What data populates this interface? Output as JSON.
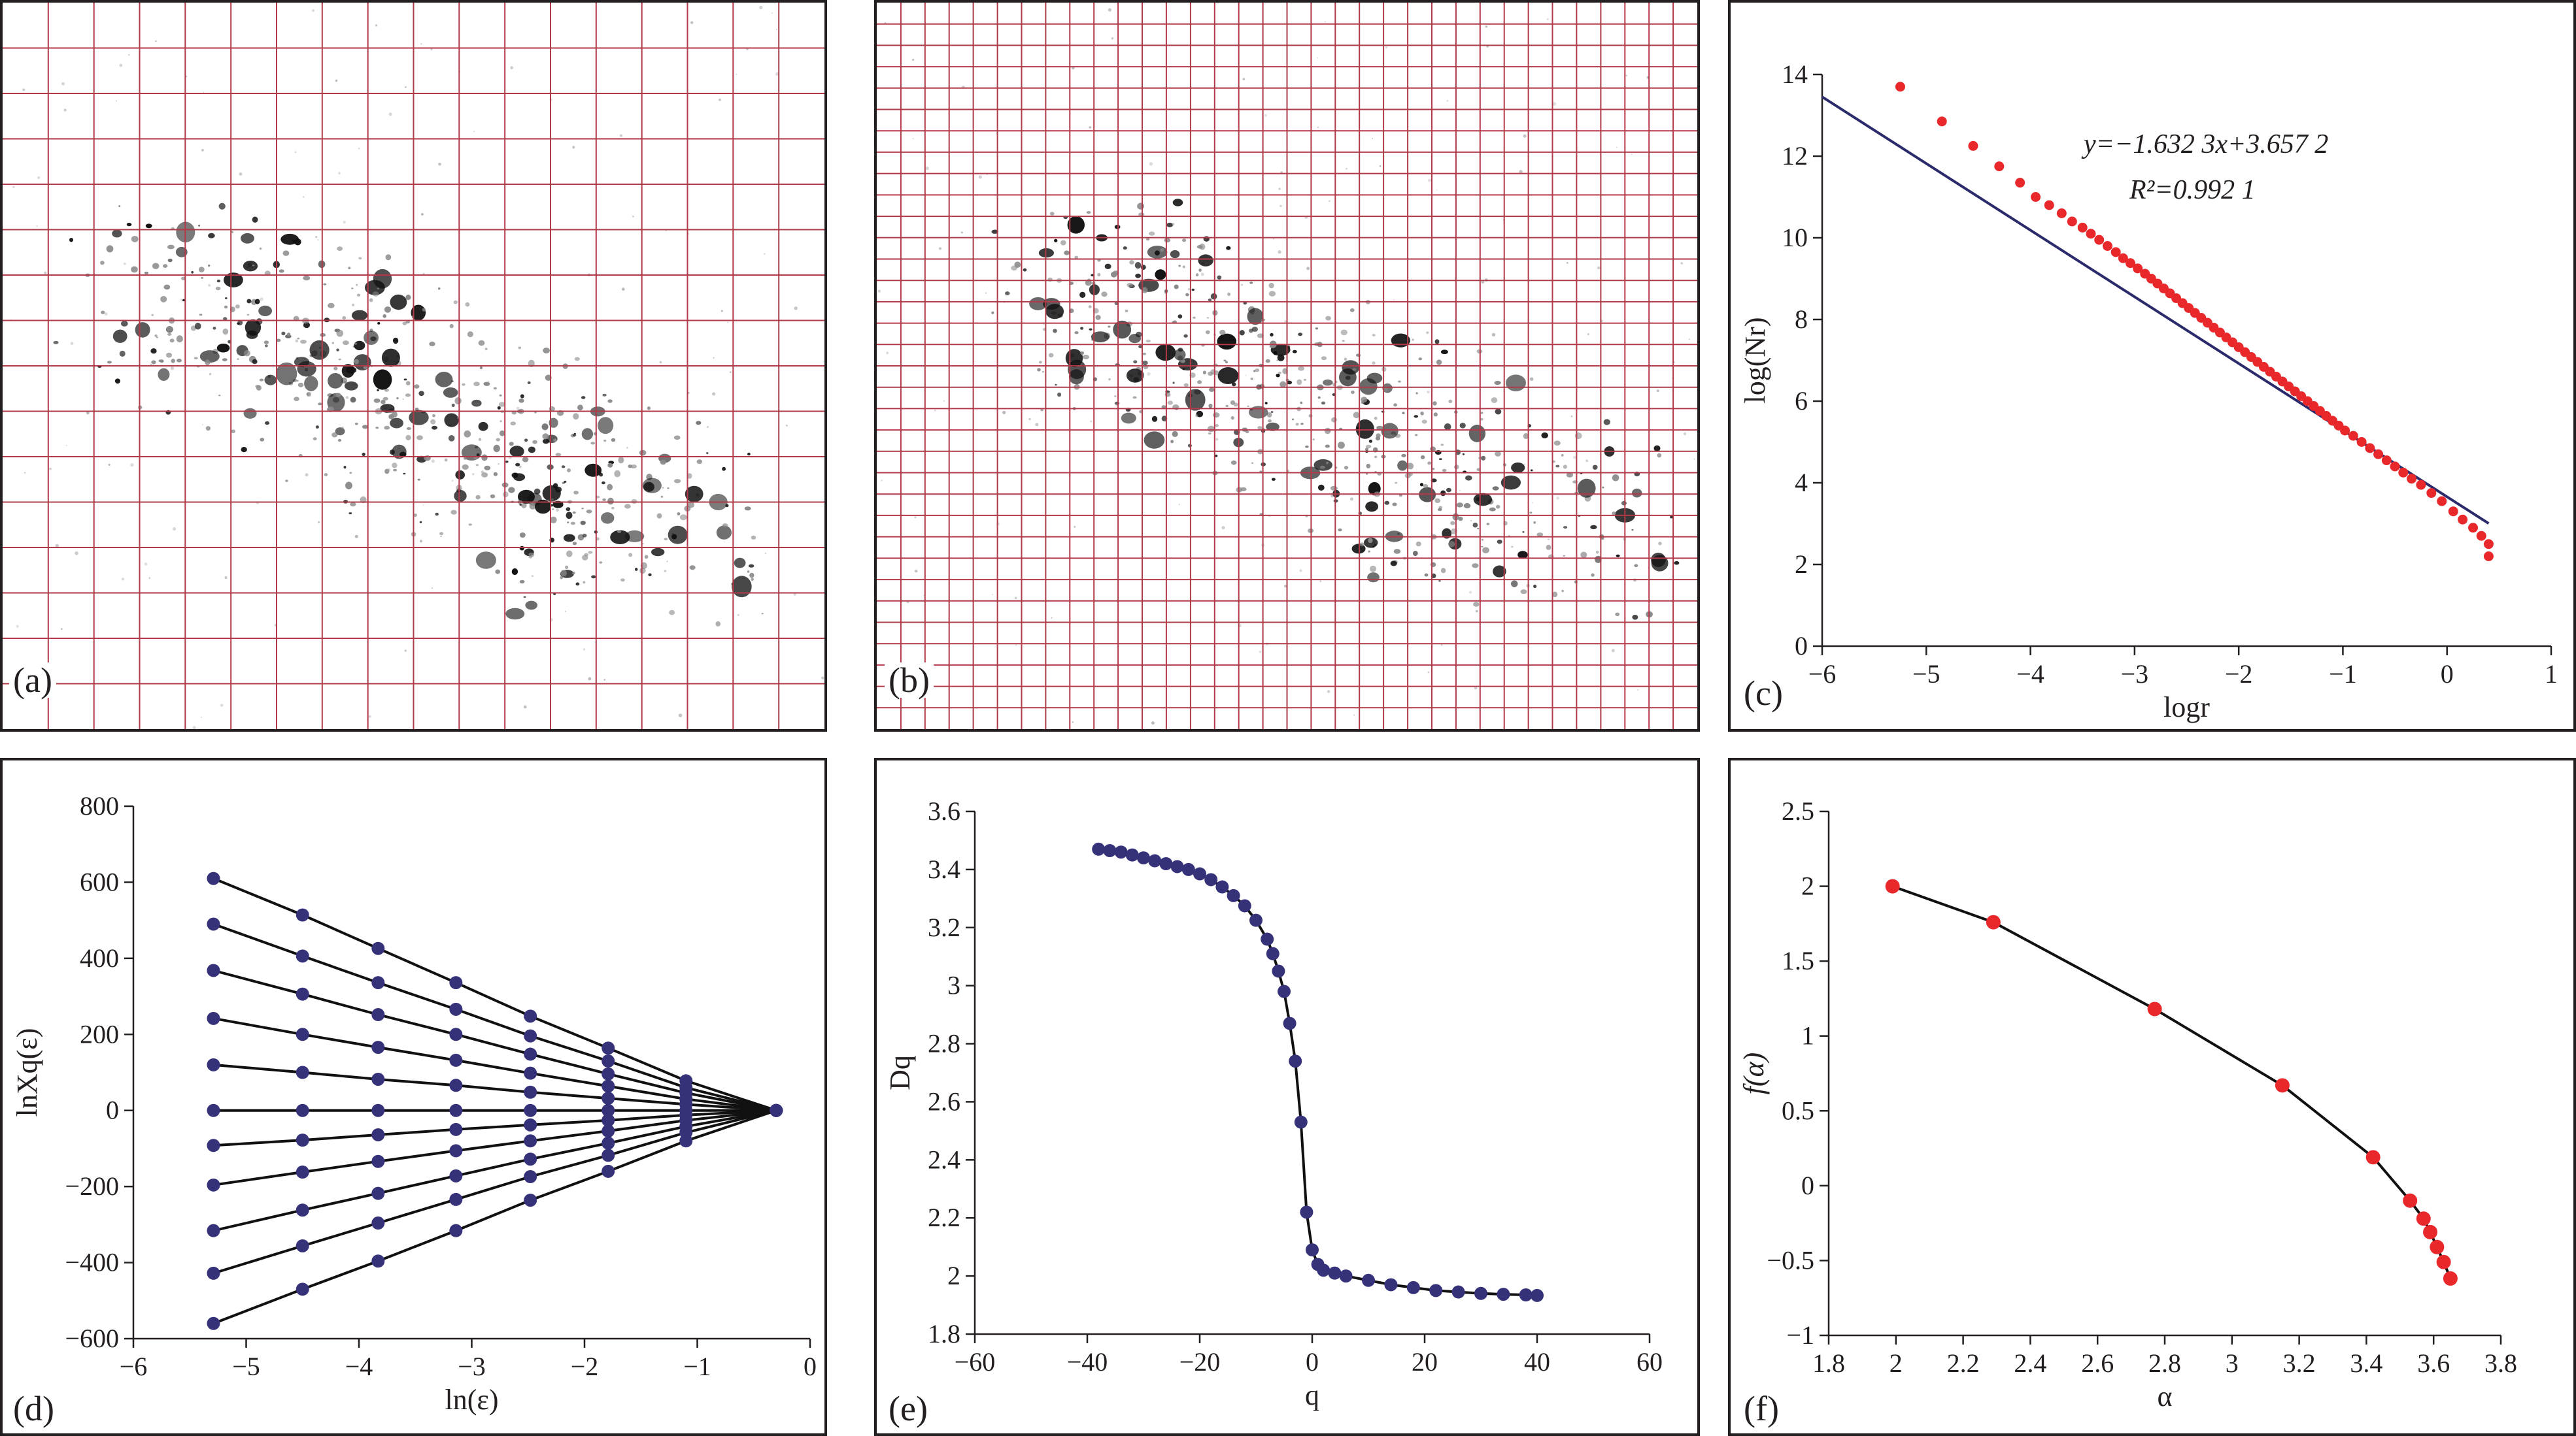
{
  "colors": {
    "frame": "#231f20",
    "grid": "#b03a48",
    "particles": "#111111",
    "red_point": "#e8282b",
    "fit_line": "#2b2a6b",
    "navy_point": "#36327a",
    "curve": "#111111"
  },
  "panels": {
    "a": {
      "label": "(a)",
      "grid_cols": 18,
      "grid_rows": 16
    },
    "b": {
      "label": "(b)",
      "grid_cols": 34,
      "grid_rows": 34
    },
    "c": {
      "label": "(c)"
    },
    "d": {
      "label": "(d)"
    },
    "e": {
      "label": "(e)"
    },
    "f": {
      "label": "(f)"
    }
  },
  "chart_data": [
    {
      "id": "c",
      "type": "scatter",
      "xlabel": "logr",
      "ylabel": "log(Nr)",
      "xlim": [
        -6,
        1
      ],
      "ylim": [
        0,
        14
      ],
      "xticks": [
        -6,
        -5,
        -4,
        -3,
        -2,
        -1,
        0,
        1
      ],
      "yticks": [
        0,
        2,
        4,
        6,
        8,
        10,
        12,
        14
      ],
      "equation": "y=−1.632 3x+3.657 2",
      "r2": "R²=0.992 1",
      "fit": {
        "slope": -1.6323,
        "intercept": 3.6572,
        "x_range": [
          -6,
          0.4
        ]
      },
      "points_x": [
        -5.25,
        -4.85,
        -4.55,
        -4.3,
        -4.1,
        -3.95,
        -3.82,
        -3.7,
        -3.6,
        -3.5,
        -3.42,
        -3.34,
        -3.26,
        -3.18,
        -3.11,
        -3.04,
        -2.97,
        -2.9,
        -2.84,
        -2.78,
        -2.72,
        -2.66,
        -2.6,
        -2.54,
        -2.48,
        -2.42,
        -2.36,
        -2.3,
        -2.24,
        -2.18,
        -2.12,
        -2.06,
        -2.0,
        -1.94,
        -1.88,
        -1.82,
        -1.76,
        -1.7,
        -1.64,
        -1.58,
        -1.52,
        -1.46,
        -1.4,
        -1.34,
        -1.28,
        -1.22,
        -1.16,
        -1.1,
        -1.04,
        -0.98,
        -0.9,
        -0.82,
        -0.74,
        -0.66,
        -0.58,
        -0.5,
        -0.42,
        -0.34,
        -0.25,
        -0.15,
        -0.05,
        0.06,
        0.15,
        0.25,
        0.33,
        0.4,
        0.4
      ],
      "points_y": [
        13.7,
        12.85,
        12.25,
        11.75,
        11.35,
        11.0,
        10.8,
        10.6,
        10.4,
        10.25,
        10.1,
        9.95,
        9.8,
        9.65,
        9.5,
        9.38,
        9.25,
        9.12,
        9.0,
        8.88,
        8.76,
        8.64,
        8.52,
        8.4,
        8.28,
        8.16,
        8.04,
        7.92,
        7.8,
        7.68,
        7.56,
        7.44,
        7.32,
        7.2,
        7.08,
        6.96,
        6.84,
        6.72,
        6.6,
        6.48,
        6.36,
        6.24,
        6.12,
        6.0,
        5.88,
        5.76,
        5.64,
        5.52,
        5.4,
        5.28,
        5.15,
        5.0,
        4.85,
        4.7,
        4.55,
        4.4,
        4.25,
        4.1,
        3.95,
        3.75,
        3.55,
        3.3,
        3.1,
        2.9,
        2.7,
        2.5,
        2.2
      ]
    },
    {
      "id": "d",
      "type": "line",
      "xlabel": "ln(ε)",
      "ylabel": "lnXq(ε)",
      "xlim": [
        -6,
        0
      ],
      "ylim": [
        -600,
        800
      ],
      "xticks": [
        -6,
        -5,
        -4,
        -3,
        -2,
        -1,
        0
      ],
      "yticks": [
        -600,
        -400,
        -200,
        0,
        200,
        400,
        600,
        800
      ],
      "x": [
        -5.29,
        -4.5,
        -3.83,
        -3.14,
        -2.48,
        -1.79,
        -1.1,
        -0.3
      ],
      "series": [
        {
          "values": [
            610,
            514,
            426,
            336,
            248,
            164,
            78,
            0
          ]
        },
        {
          "values": [
            490,
            406,
            336,
            266,
            196,
            130,
            60,
            0
          ]
        },
        {
          "values": [
            368,
            306,
            252,
            200,
            148,
            96,
            46,
            0
          ]
        },
        {
          "values": [
            242,
            200,
            166,
            132,
            98,
            64,
            30,
            0
          ]
        },
        {
          "values": [
            120,
            100,
            82,
            66,
            48,
            32,
            16,
            0
          ]
        },
        {
          "values": [
            0,
            0,
            0,
            0,
            0,
            0,
            0,
            0
          ]
        },
        {
          "values": [
            -92,
            -78,
            -64,
            -50,
            -38,
            -26,
            -12,
            0
          ]
        },
        {
          "values": [
            -196,
            -162,
            -134,
            -106,
            -80,
            -54,
            -26,
            0
          ]
        },
        {
          "values": [
            -316,
            -262,
            -218,
            -172,
            -128,
            -86,
            -42,
            0
          ]
        },
        {
          "values": [
            -428,
            -356,
            -296,
            -234,
            -174,
            -118,
            -58,
            0
          ]
        },
        {
          "values": [
            -560,
            -470,
            -396,
            -316,
            -236,
            -160,
            -80,
            0
          ]
        }
      ]
    },
    {
      "id": "e",
      "type": "line",
      "xlabel": "q",
      "ylabel": "Dq",
      "xlim": [
        -60,
        60
      ],
      "ylim": [
        1.8,
        3.6
      ],
      "xticks": [
        -60,
        -40,
        -20,
        0,
        20,
        40,
        60
      ],
      "yticks": [
        1.8,
        2,
        2.2,
        2.4,
        2.6,
        2.8,
        3,
        3.2,
        3.4,
        3.6
      ],
      "x": [
        -38,
        -36,
        -34,
        -32,
        -30,
        -28,
        -26,
        -24,
        -22,
        -20,
        -18,
        -16,
        -14,
        -12,
        -10,
        -8,
        -7,
        -6,
        -5,
        -4,
        -3,
        -2,
        -1,
        0,
        1,
        2,
        4,
        6,
        10,
        14,
        18,
        22,
        26,
        30,
        34,
        38,
        40
      ],
      "values": [
        3.47,
        3.465,
        3.46,
        3.45,
        3.44,
        3.43,
        3.42,
        3.41,
        3.4,
        3.385,
        3.365,
        3.34,
        3.31,
        3.275,
        3.225,
        3.16,
        3.11,
        3.05,
        2.98,
        2.87,
        2.74,
        2.53,
        2.22,
        2.09,
        2.04,
        2.02,
        2.01,
        2.0,
        1.985,
        1.97,
        1.96,
        1.95,
        1.945,
        1.94,
        1.937,
        1.935,
        1.933
      ]
    },
    {
      "id": "f",
      "type": "line",
      "xlabel": "α",
      "ylabel": "f(α)",
      "xlim": [
        1.8,
        3.8
      ],
      "ylim": [
        -1,
        2.5
      ],
      "xticks": [
        1.8,
        2,
        2.2,
        2.4,
        2.6,
        2.8,
        3,
        3.2,
        3.4,
        3.6,
        3.8
      ],
      "yticks": [
        -1,
        -0.5,
        0,
        0.5,
        1,
        1.5,
        2,
        2.5
      ],
      "x": [
        1.99,
        2.29,
        2.77,
        3.15,
        3.42,
        3.53,
        3.57,
        3.59,
        3.61,
        3.63,
        3.65
      ],
      "values": [
        2.0,
        1.76,
        1.18,
        0.67,
        0.19,
        -0.1,
        -0.22,
        -0.31,
        -0.41,
        -0.51,
        -0.62
      ]
    }
  ]
}
